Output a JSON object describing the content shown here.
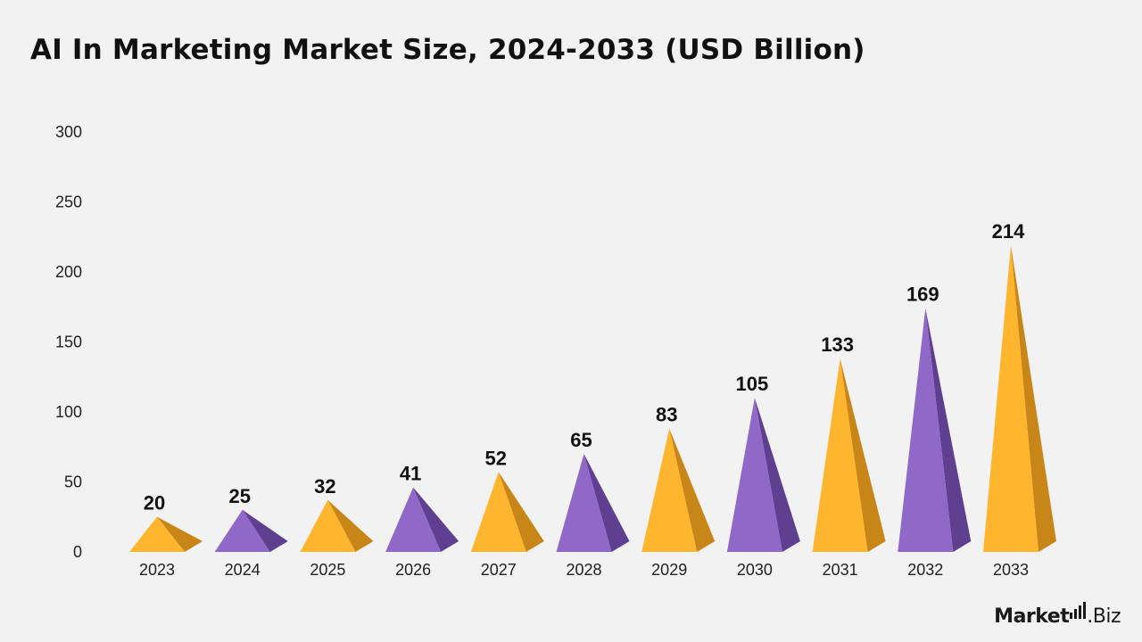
{
  "header": {
    "title": "AI In Marketing Market Size, 2024-2033 (USD Billion)"
  },
  "brand": {
    "name_bold": "Market",
    "name_light": ".Biz"
  },
  "colors": {
    "orange": "#ffb52e",
    "orange_side": "#c98618",
    "purple": "#9068c8",
    "purple_side": "#5f3f8f",
    "background": "#f2f2f2"
  },
  "chart_data": {
    "type": "bar",
    "mark_shape": "3d-pyramid",
    "title": "AI In Marketing Market Size, 2024-2033 (USD Billion)",
    "categories": [
      "2023",
      "2024",
      "2025",
      "2026",
      "2027",
      "2028",
      "2029",
      "2030",
      "2031",
      "2032",
      "2033"
    ],
    "values": [
      20,
      25,
      32,
      41,
      52,
      65,
      83,
      105,
      133,
      169,
      214
    ],
    "data_labels": [
      "20",
      "25",
      "32",
      "41",
      "52",
      "65",
      "83",
      "105",
      "133",
      "169",
      "214"
    ],
    "yticks": [
      0,
      50,
      100,
      150,
      200,
      250,
      300
    ],
    "ylim": [
      0,
      300
    ],
    "xlabel": "",
    "ylabel": "",
    "grid": false,
    "legend": "none",
    "bar_colors": [
      "orange",
      "purple",
      "orange",
      "purple",
      "orange",
      "purple",
      "orange",
      "purple",
      "orange",
      "purple",
      "orange"
    ]
  }
}
